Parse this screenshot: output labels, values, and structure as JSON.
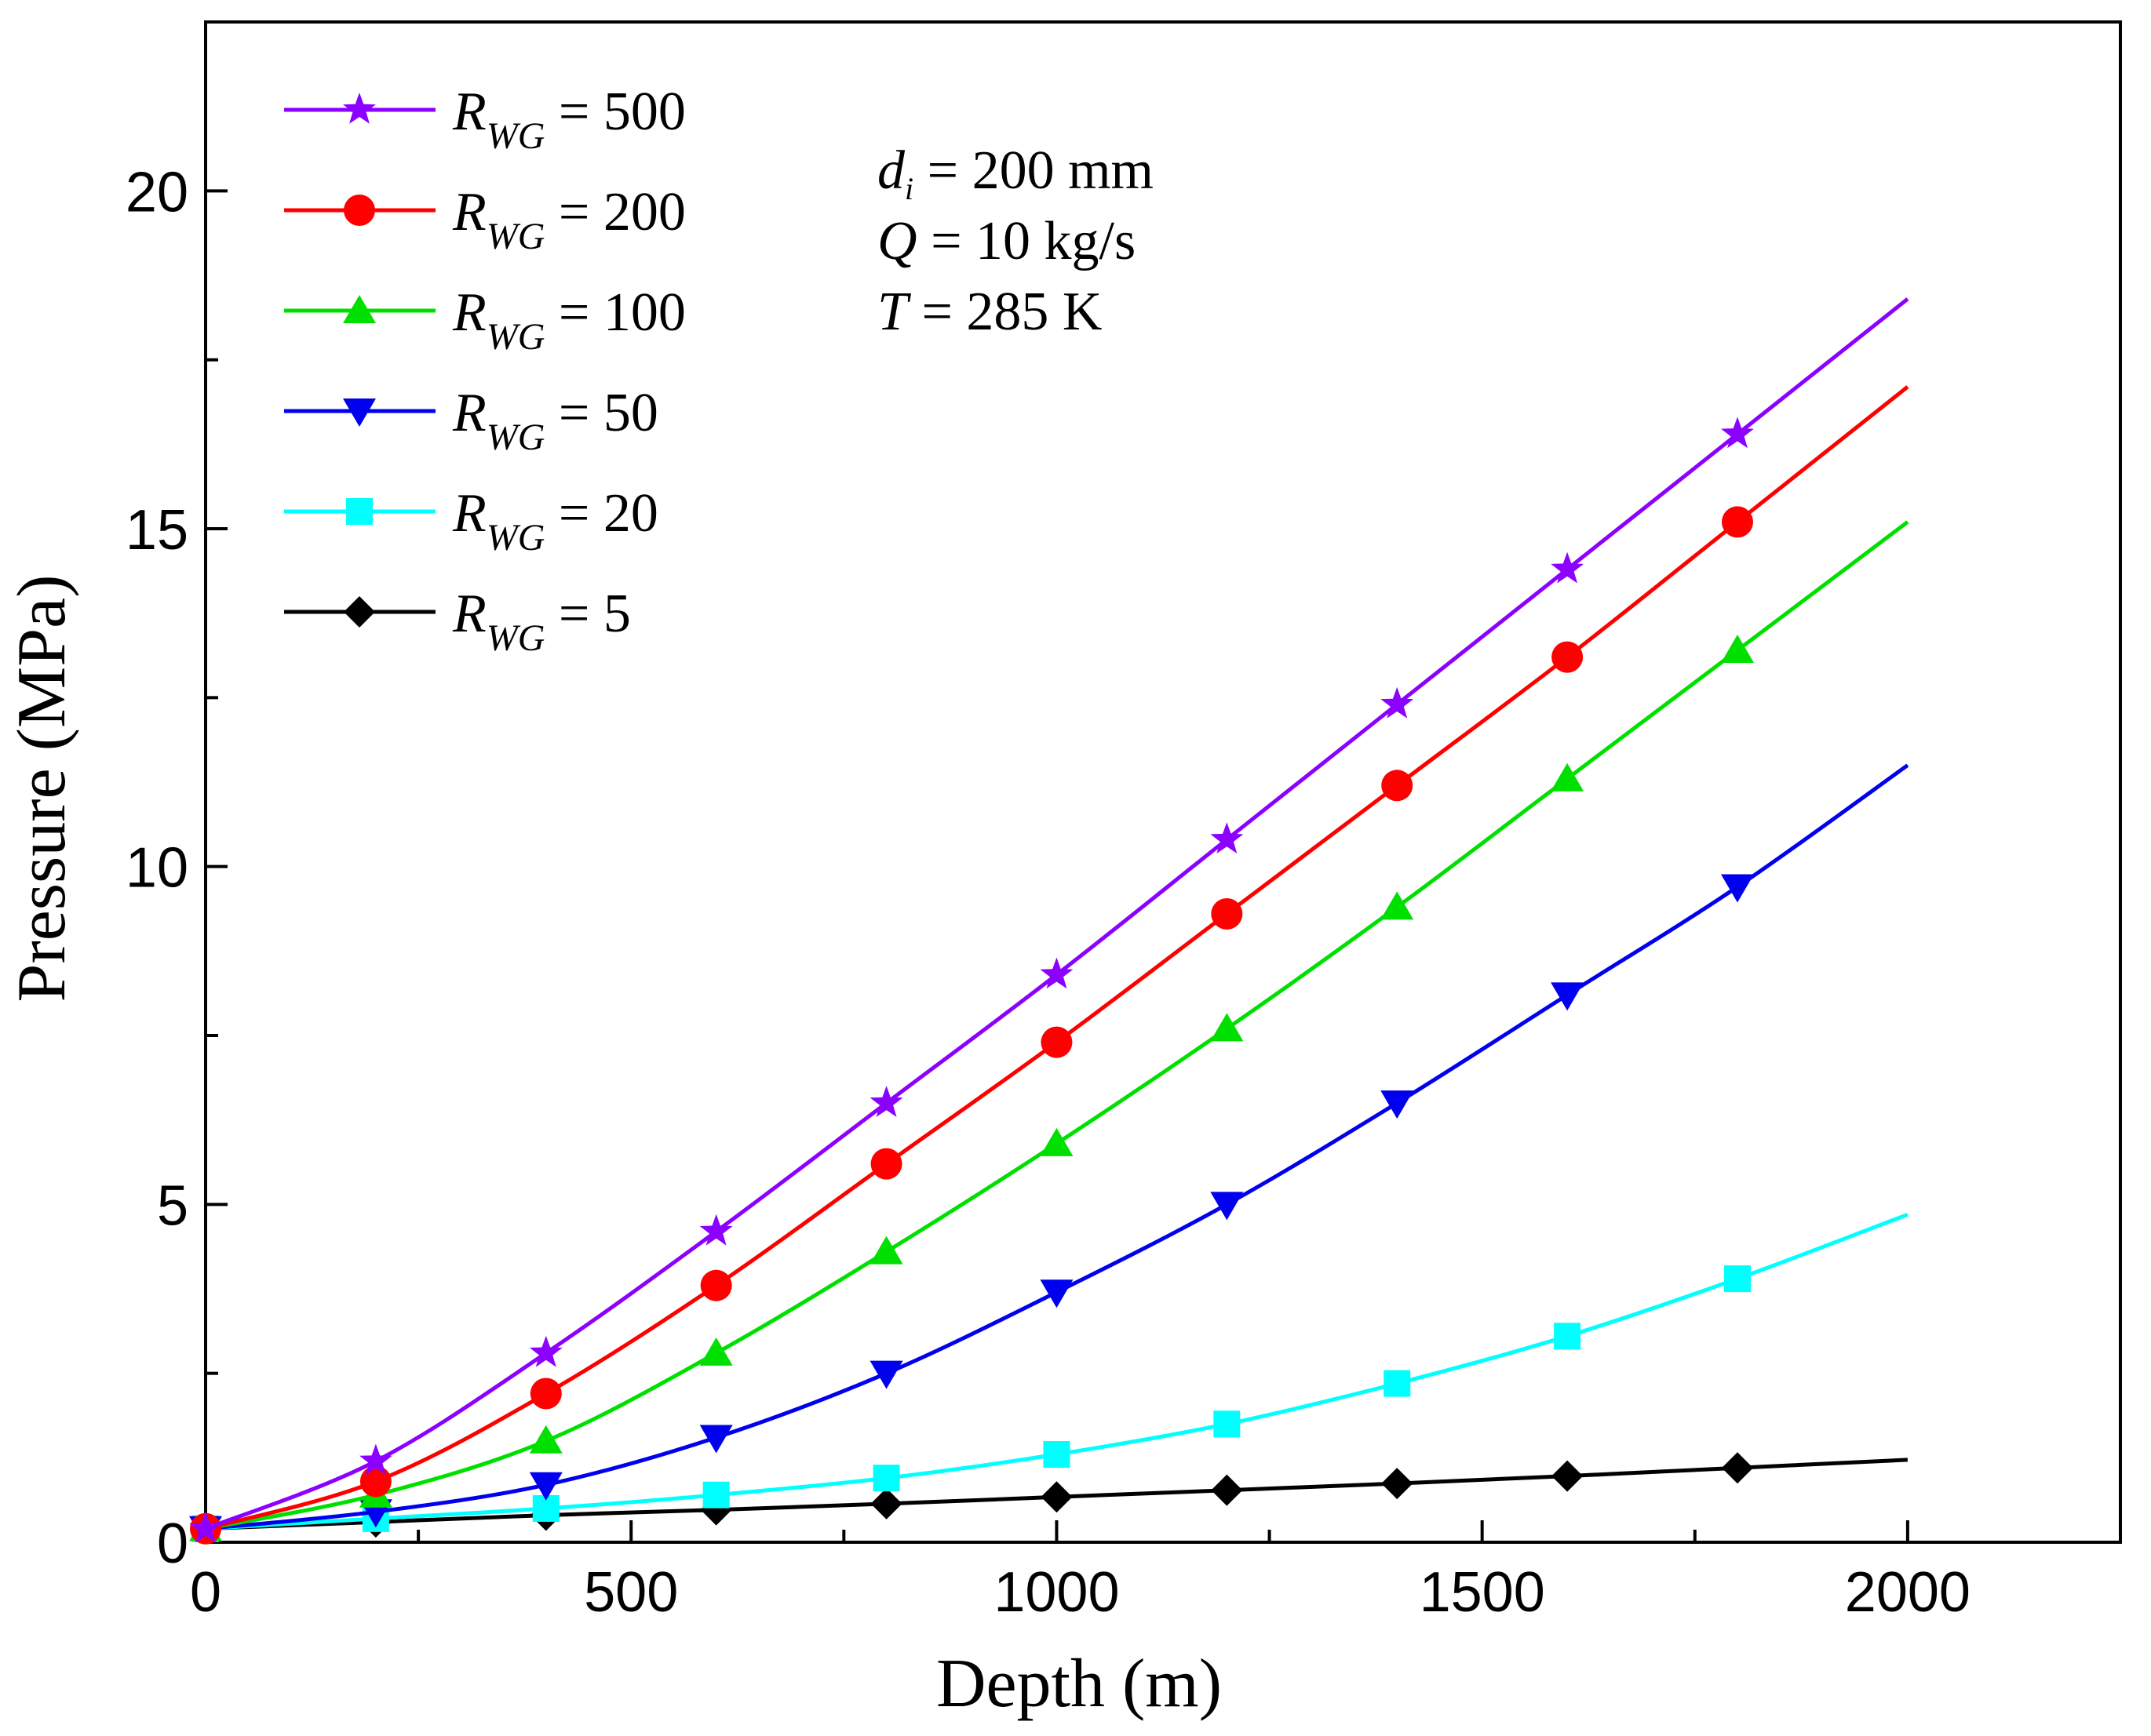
{
  "chart_data": {
    "type": "line",
    "xlabel": "Depth (m)",
    "ylabel": "Pressure (MPa)",
    "xlim": [
      0,
      2250
    ],
    "ylim": [
      0,
      22.5
    ],
    "xticks": [
      0,
      500,
      1000,
      1500,
      2000
    ],
    "xtick_labels": [
      "0",
      "500",
      "1000",
      "1500",
      "2000"
    ],
    "yticks": [
      0,
      5,
      10,
      15,
      20
    ],
    "ytick_labels": [
      "0",
      "5",
      "10",
      "15",
      "20"
    ],
    "legend_position": "top-left",
    "annotations": [
      {
        "var": "d",
        "sub": "i",
        "text": " = 200 mm"
      },
      {
        "var": "Q",
        "sub": "",
        "text": " = 10 kg/s"
      },
      {
        "var": "T",
        "sub": "",
        "text": " = 285 K"
      }
    ],
    "x": [
      0,
      200,
      400,
      600,
      800,
      1000,
      1200,
      1400,
      1600,
      1800,
      2000
    ],
    "series": [
      {
        "name": "R_WG = 500",
        "label_var": "R",
        "label_sub": "WG",
        "label_value": " = 500",
        "color": "#8B00FF",
        "marker": "star",
        "values": [
          0.2,
          1.2,
          2.8,
          4.6,
          6.5,
          8.4,
          10.4,
          12.4,
          14.4,
          16.4,
          18.4
        ]
      },
      {
        "name": "R_WG = 200",
        "label_var": "R",
        "label_sub": "WG",
        "label_value": " = 200",
        "color": "#FF0000",
        "marker": "circle",
        "values": [
          0.2,
          0.9,
          2.2,
          3.8,
          5.6,
          7.4,
          9.3,
          11.2,
          13.1,
          15.1,
          17.1
        ]
      },
      {
        "name": "R_WG = 100",
        "label_var": "R",
        "label_sub": "WG",
        "label_value": " = 100",
        "color": "#00E000",
        "marker": "triangle-up",
        "values": [
          0.2,
          0.7,
          1.5,
          2.8,
          4.3,
          5.9,
          7.6,
          9.4,
          11.3,
          13.2,
          15.1
        ]
      },
      {
        "name": "R_WG = 50",
        "label_var": "R",
        "label_sub": "WG",
        "label_value": " = 50",
        "color": "#0000EE",
        "marker": "triangle-down",
        "values": [
          0.2,
          0.45,
          0.85,
          1.55,
          2.5,
          3.7,
          5.0,
          6.5,
          8.1,
          9.7,
          11.5
        ]
      },
      {
        "name": "R_WG = 20",
        "label_var": "R",
        "label_sub": "WG",
        "label_value": " = 20",
        "color": "#00FFFF",
        "marker": "square",
        "values": [
          0.2,
          0.35,
          0.5,
          0.7,
          0.95,
          1.3,
          1.75,
          2.35,
          3.05,
          3.9,
          4.85
        ]
      },
      {
        "name": "R_WG = 5",
        "label_var": "R",
        "label_sub": "WG",
        "label_value": " = 5",
        "color": "#000000",
        "marker": "diamond",
        "values": [
          0.2,
          0.3,
          0.4,
          0.48,
          0.57,
          0.67,
          0.77,
          0.87,
          0.98,
          1.1,
          1.22
        ]
      }
    ]
  }
}
